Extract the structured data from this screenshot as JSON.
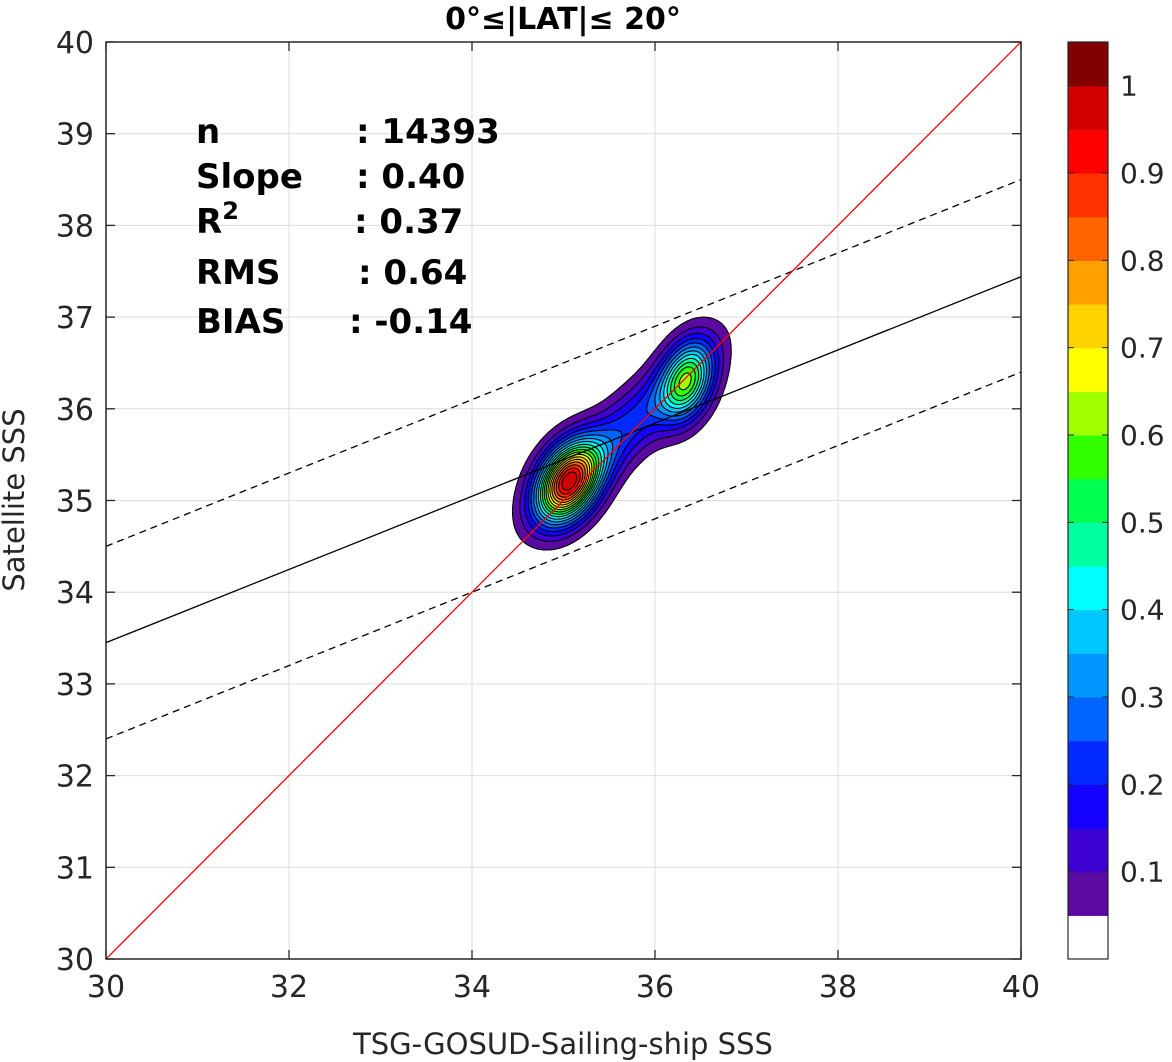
{
  "chart_data": {
    "type": "contour",
    "title": "0°≤|LAT|≤ 20°",
    "xlabel": "TSG-GOSUD-Sailing-ship SSS",
    "ylabel": "Satellite SSS",
    "xlim": [
      30,
      40
    ],
    "ylim": [
      30,
      40
    ],
    "xticks": [
      30,
      32,
      34,
      36,
      38,
      40
    ],
    "yticks": [
      30,
      31,
      32,
      33,
      34,
      35,
      36,
      37,
      38,
      39,
      40
    ],
    "grid": true,
    "stats": [
      {
        "label": "n",
        "value": ": 14393"
      },
      {
        "label": "Slope",
        "value": ": 0.40"
      },
      {
        "label": "R",
        "sup": "2",
        "value": ": 0.37"
      },
      {
        "label": "RMS",
        "value": ": 0.64"
      },
      {
        "label": "BIAS",
        "value": ": -0.14"
      }
    ],
    "lines": {
      "identity": {
        "x": [
          30,
          40
        ],
        "y": [
          30,
          40
        ],
        "color": "#ff0000"
      },
      "fit": {
        "x": [
          30,
          40
        ],
        "y": [
          33.45,
          37.44
        ],
        "color": "#000000"
      },
      "fit_upper": {
        "x": [
          30,
          40
        ],
        "y": [
          34.5,
          38.5
        ],
        "color": "#000000",
        "dashed": true
      },
      "fit_lower": {
        "x": [
          30,
          40
        ],
        "y": [
          32.4,
          36.4
        ],
        "color": "#000000",
        "dashed": true
      }
    },
    "density_peaks": [
      {
        "x": 35.05,
        "y": 35.2,
        "sx": 0.24,
        "sy": 0.3,
        "rho": 0.35,
        "amp": 1.0
      },
      {
        "x": 36.35,
        "y": 36.3,
        "sx": 0.2,
        "sy": 0.3,
        "rho": 0.3,
        "amp": 0.58
      },
      {
        "x": 35.7,
        "y": 35.8,
        "sx": 0.55,
        "sy": 0.55,
        "rho": 0.85,
        "amp": 0.25
      }
    ],
    "contour_levels": [
      0.05,
      0.1,
      0.15,
      0.2,
      0.25,
      0.3,
      0.35,
      0.4,
      0.45,
      0.5,
      0.55,
      0.6,
      0.65,
      0.7,
      0.75,
      0.8,
      0.85,
      0.9,
      0.95
    ],
    "colorbar": {
      "ticks": [
        {
          "value": 0.1,
          "label": "0.1"
        },
        {
          "value": 0.2,
          "label": "0.2"
        },
        {
          "value": 0.3,
          "label": "0.3"
        },
        {
          "value": 0.4,
          "label": "0.4"
        },
        {
          "value": 0.5,
          "label": "0.5"
        },
        {
          "value": 0.6,
          "label": "0.6"
        },
        {
          "value": 0.7,
          "label": "0.7"
        },
        {
          "value": 0.8,
          "label": "0.8"
        },
        {
          "value": 0.9,
          "label": "0.9"
        },
        {
          "value": 1.0,
          "label": "1"
        }
      ],
      "colors": [
        "#ffffff",
        "#5a0aa0",
        "#3c00d2",
        "#1400ff",
        "#0028ff",
        "#0064ff",
        "#0096ff",
        "#00c8ff",
        "#00ffff",
        "#00ffa0",
        "#00ff50",
        "#32ff00",
        "#a0ff00",
        "#ffff00",
        "#ffd200",
        "#ffa000",
        "#ff6400",
        "#ff3200",
        "#ff0000",
        "#d20000",
        "#820000"
      ]
    }
  }
}
